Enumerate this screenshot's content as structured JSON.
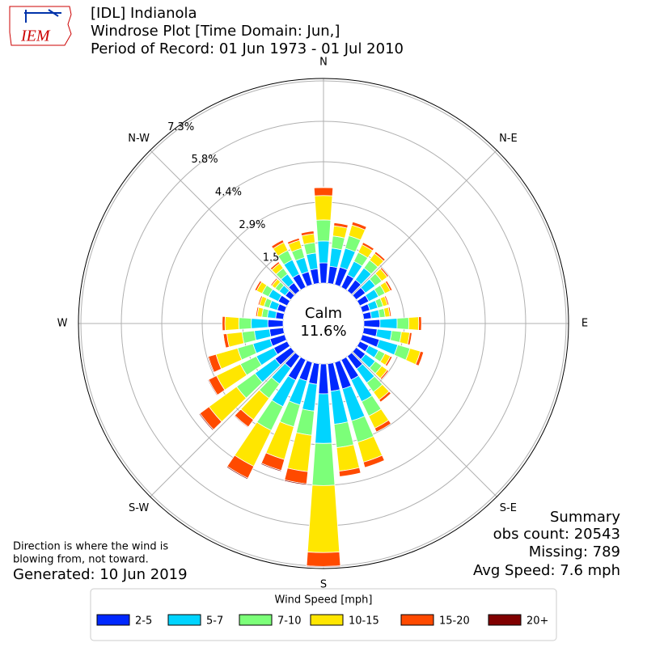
{
  "chart_data": {
    "type": "windrose",
    "logo_text": "IEM",
    "title_lines": [
      "[IDL] Indianola",
      "Windrose Plot [Time Domain: Jun,]",
      "Period of Record: 01 Jun 1973 - 01 Jul 2010"
    ],
    "x": [
      0,
      10,
      20,
      30,
      40,
      50,
      60,
      70,
      80,
      90,
      100,
      110,
      120,
      130,
      140,
      150,
      160,
      170,
      180,
      190,
      200,
      210,
      220,
      230,
      240,
      250,
      260,
      270,
      280,
      290,
      300,
      310,
      320,
      330,
      340,
      350
    ],
    "xticks": [
      {
        "value": 0,
        "label": "N"
      },
      {
        "value": 45,
        "label": "N-E"
      },
      {
        "value": 90,
        "label": "E"
      },
      {
        "value": 135,
        "label": "S-E"
      },
      {
        "value": 180,
        "label": "S"
      },
      {
        "value": 225,
        "label": "S-W"
      },
      {
        "value": 270,
        "label": "W"
      },
      {
        "value": 315,
        "label": "N-W"
      }
    ],
    "ylim": [
      0,
      7.3
    ],
    "yticks": [
      {
        "value": 1.46,
        "label": "1.5%"
      },
      {
        "value": 2.92,
        "label": "2.9%"
      },
      {
        "value": 4.38,
        "label": "4.4%"
      },
      {
        "value": 5.84,
        "label": "5.8%"
      },
      {
        "value": 7.3,
        "label": "7.3%"
      }
    ],
    "calm_label": "Calm",
    "calm_value": 11.6,
    "calm_value_label": "11.6%",
    "legend_title": "Wind Speed [mph]",
    "series": [
      {
        "name": "2-5",
        "color": "#0028ff",
        "values": [
          0.73,
          0.62,
          0.66,
          0.5,
          0.49,
          0.41,
          0.36,
          0.28,
          0.28,
          0.58,
          0.49,
          0.64,
          0.36,
          0.41,
          0.57,
          0.81,
          1.0,
          1.0,
          1.08,
          0.75,
          0.7,
          0.82,
          0.54,
          0.7,
          0.54,
          0.55,
          0.5,
          0.55,
          0.28,
          0.28,
          0.36,
          0.25,
          0.36,
          0.53,
          0.49,
          0.53
        ]
      },
      {
        "name": "5-7",
        "color": "#00d4ff",
        "values": [
          0.79,
          0.66,
          0.71,
          0.54,
          0.53,
          0.44,
          0.39,
          0.3,
          0.3,
          0.62,
          0.53,
          0.69,
          0.39,
          0.44,
          0.62,
          0.87,
          1.2,
          1.2,
          1.79,
          0.97,
          0.9,
          1.06,
          0.7,
          0.9,
          0.7,
          0.64,
          0.55,
          0.6,
          0.3,
          0.3,
          0.39,
          0.27,
          0.39,
          0.57,
          0.53,
          0.57
        ]
      },
      {
        "name": "7-10",
        "color": "#7cff79",
        "values": [
          0.76,
          0.44,
          0.47,
          0.36,
          0.35,
          0.29,
          0.26,
          0.2,
          0.2,
          0.42,
          0.35,
          0.46,
          0.26,
          0.29,
          0.41,
          0.58,
          0.8,
          0.85,
          1.52,
          0.88,
          0.82,
          0.96,
          0.64,
          0.82,
          0.64,
          0.58,
          0.45,
          0.45,
          0.2,
          0.2,
          0.26,
          0.18,
          0.26,
          0.38,
          0.35,
          0.38
        ]
      },
      {
        "name": "10-15",
        "color": "#ffe600",
        "values": [
          0.88,
          0.37,
          0.4,
          0.31,
          0.3,
          0.25,
          0.22,
          0.17,
          0.17,
          0.36,
          0.3,
          0.39,
          0.22,
          0.25,
          0.35,
          0.49,
          0.75,
          0.85,
          2.42,
          1.32,
          1.23,
          1.44,
          0.96,
          1.23,
          0.96,
          0.81,
          0.55,
          0.5,
          0.17,
          0.17,
          0.22,
          0.15,
          0.22,
          0.32,
          0.3,
          0.32
        ]
      },
      {
        "name": "15-20",
        "color": "#ff4a00",
        "values": [
          0.29,
          0.11,
          0.12,
          0.09,
          0.08,
          0.06,
          0.07,
          0.05,
          0.05,
          0.1,
          0.08,
          0.12,
          0.07,
          0.06,
          0.1,
          0.15,
          0.2,
          0.2,
          0.5,
          0.44,
          0.41,
          0.48,
          0.32,
          0.41,
          0.32,
          0.29,
          0.13,
          0.1,
          0.05,
          0.05,
          0.07,
          0.05,
          0.07,
          0.1,
          0.08,
          0.1
        ]
      },
      {
        "name": "20+",
        "color": "#800000",
        "values": [
          0.02,
          0,
          0,
          0,
          0,
          0,
          0,
          0,
          0,
          0,
          0,
          0,
          0,
          0,
          0,
          0,
          0,
          0,
          0.03,
          0.04,
          0.04,
          0.04,
          0.03,
          0.04,
          0.03,
          0.03,
          0.02,
          0,
          0,
          0,
          0,
          0,
          0,
          0,
          0,
          0
        ]
      }
    ],
    "summary_lines": [
      "Summary",
      "obs count: 20543",
      "Missing: 789",
      "Avg Speed: 7.6 mph"
    ],
    "note_lines": [
      "Direction is where the wind is",
      "blowing from, not toward."
    ],
    "generated": "Generated: 10 Jun 2019"
  }
}
